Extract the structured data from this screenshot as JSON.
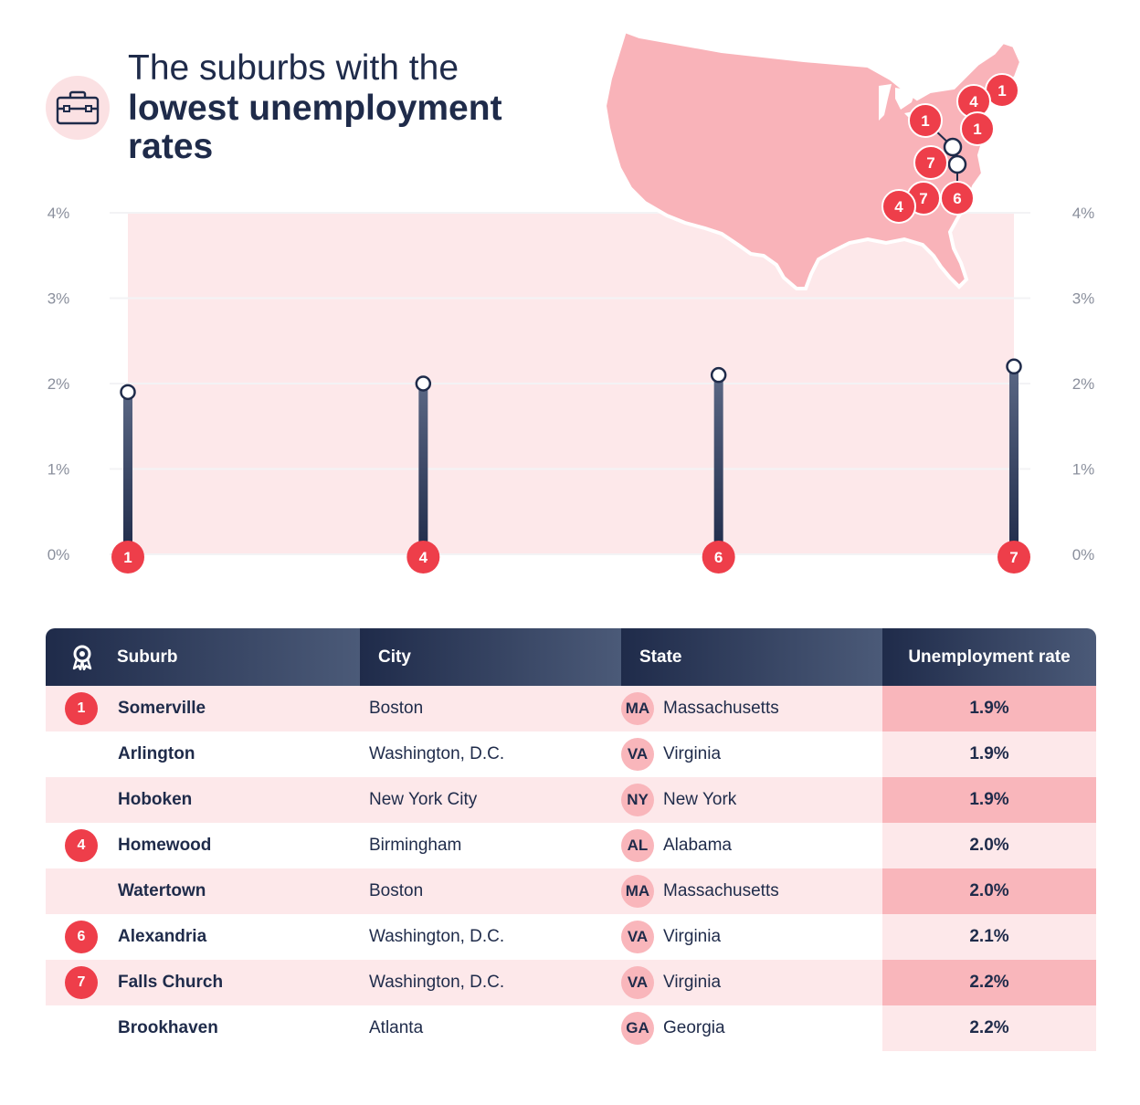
{
  "title": {
    "line1": "The suburbs with the",
    "line2": "lowest unemployment",
    "line3": "rates"
  },
  "icons": {
    "title": "briefcase-icon",
    "header": "award-ribbon-icon"
  },
  "colors": {
    "navy": "#1f2b4a",
    "red": "#ee3e4a",
    "pink_light": "#fde8ea",
    "pink_mid": "#f9b6bb",
    "map": "#f9b3b9"
  },
  "chart_data": {
    "type": "lollipop",
    "categories": [
      "1",
      "4",
      "6",
      "7"
    ],
    "values": [
      1.9,
      2.0,
      2.1,
      2.2
    ],
    "ylim": [
      0,
      4
    ],
    "yticks": [
      "0%",
      "1%",
      "2%",
      "3%",
      "4%"
    ],
    "y_axis_both_sides": true,
    "grid": true
  },
  "map": {
    "badges": [
      "1",
      "4",
      "1",
      "1",
      "7",
      "6",
      "7",
      "4"
    ]
  },
  "table": {
    "headers": {
      "suburb": "Suburb",
      "city": "City",
      "state": "State",
      "rate": "Unemployment rate"
    },
    "rows": [
      {
        "rank": "1",
        "suburb": "Somerville",
        "city": "Boston",
        "state_abbr": "MA",
        "state": "Massachusetts",
        "rate": "1.9%"
      },
      {
        "rank": "",
        "suburb": "Arlington",
        "city": "Washington, D.C.",
        "state_abbr": "VA",
        "state": "Virginia",
        "rate": "1.9%"
      },
      {
        "rank": "",
        "suburb": "Hoboken",
        "city": "New York City",
        "state_abbr": "NY",
        "state": "New York",
        "rate": "1.9%"
      },
      {
        "rank": "4",
        "suburb": "Homewood",
        "city": "Birmingham",
        "state_abbr": "AL",
        "state": "Alabama",
        "rate": "2.0%"
      },
      {
        "rank": "",
        "suburb": "Watertown",
        "city": "Boston",
        "state_abbr": "MA",
        "state": "Massachusetts",
        "rate": "2.0%"
      },
      {
        "rank": "6",
        "suburb": "Alexandria",
        "city": "Washington, D.C.",
        "state_abbr": "VA",
        "state": "Virginia",
        "rate": "2.1%"
      },
      {
        "rank": "7",
        "suburb": "Falls Church",
        "city": "Washington, D.C.",
        "state_abbr": "VA",
        "state": "Virginia",
        "rate": "2.2%"
      },
      {
        "rank": "",
        "suburb": "Brookhaven",
        "city": "Atlanta",
        "state_abbr": "GA",
        "state": "Georgia",
        "rate": "2.2%"
      }
    ]
  }
}
